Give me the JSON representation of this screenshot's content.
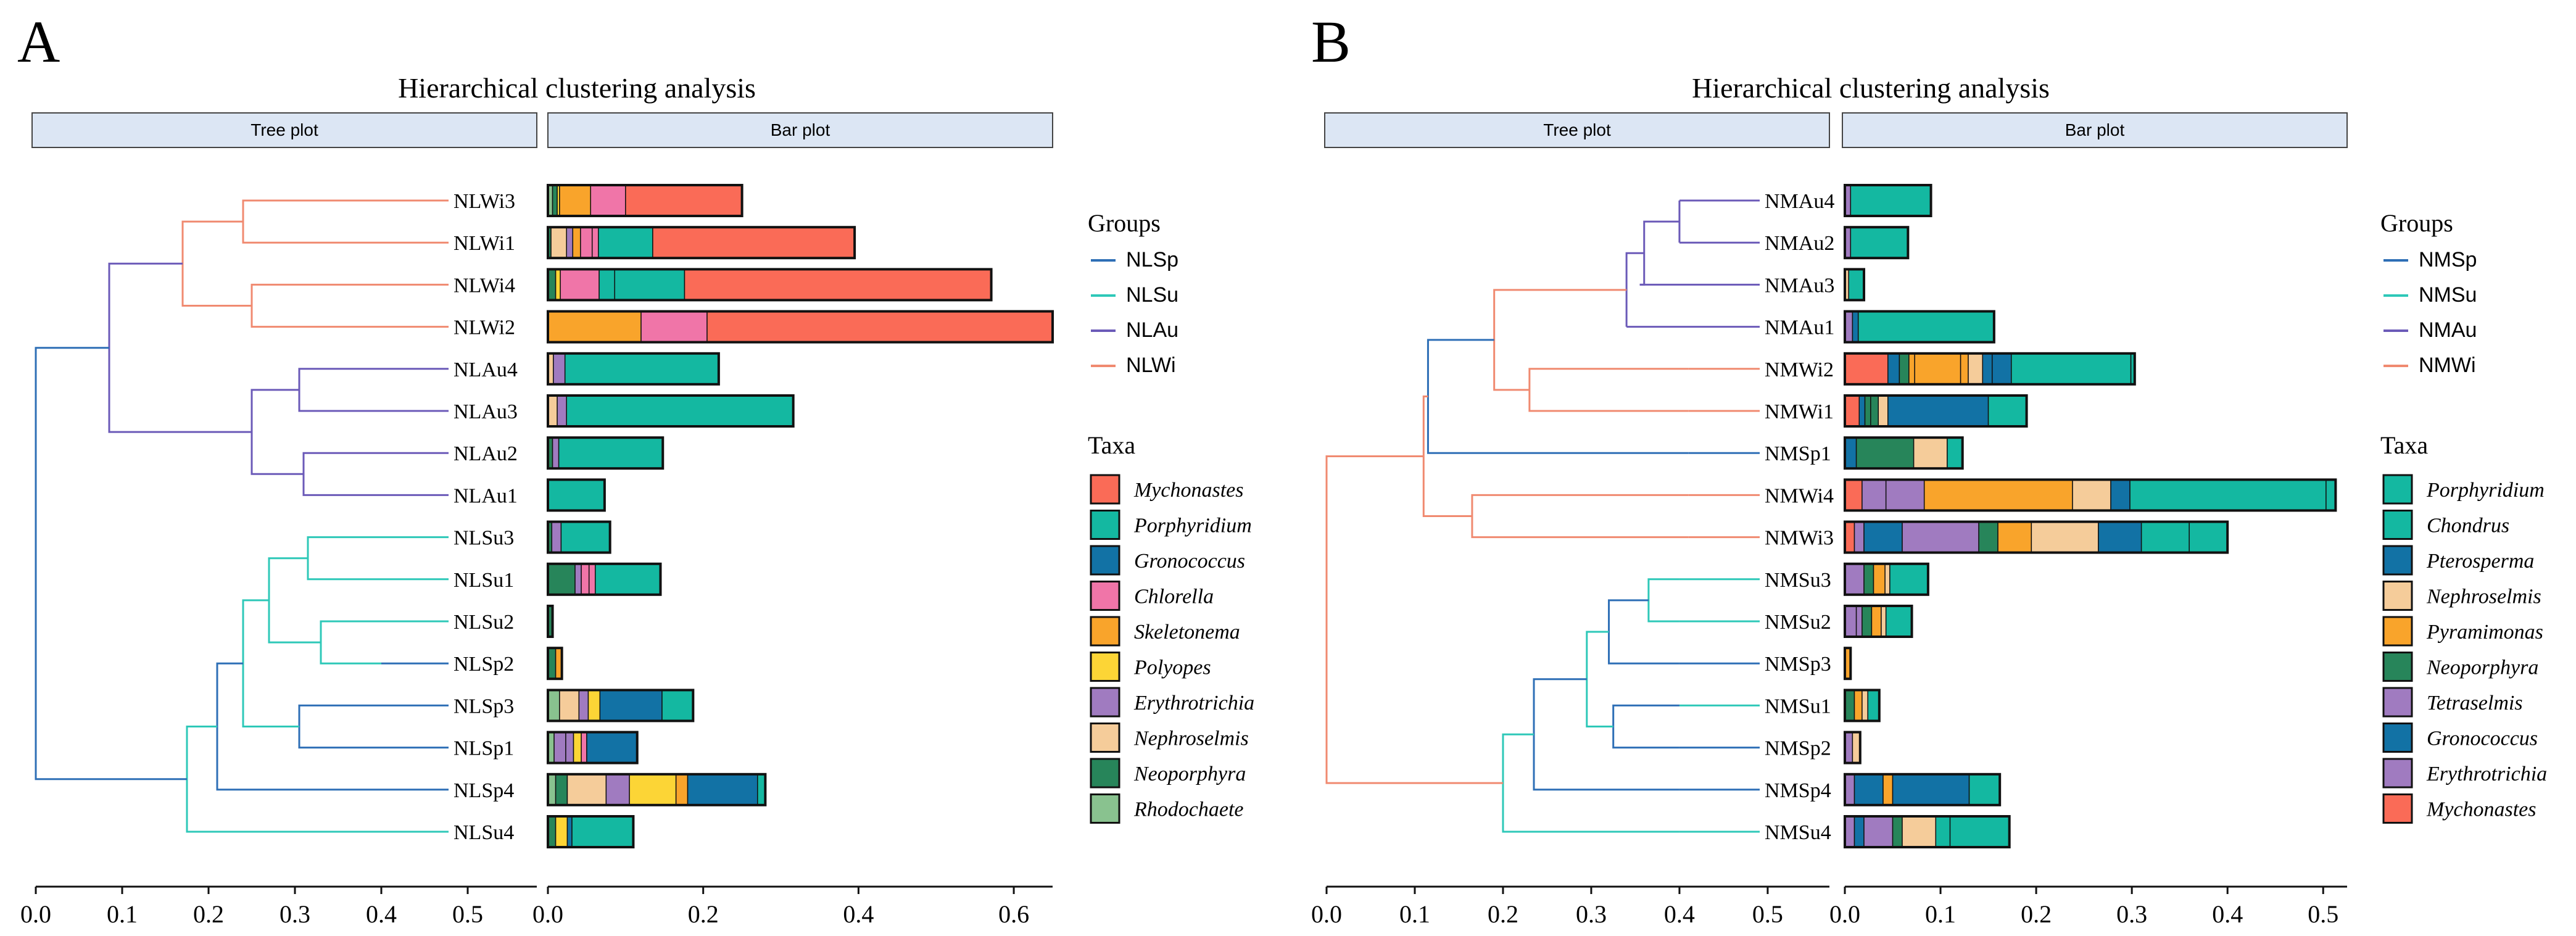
{
  "colors": {
    "Mychonastes": "#FA6B57",
    "Porphyridium": "#14B8A1",
    "Gronococcus": "#1272A5",
    "Chlorella": "#F075A8",
    "Skeletonema": "#F9A42B",
    "Polyopes": "#FCD536",
    "Erythrotrichia": "#A07BC0",
    "Nephroselmis": "#F5CC9A",
    "Neoporphyra": "#27855A",
    "Rhodochaete": "#89C28F",
    "Chondrus": "#14B8A1",
    "Pterosperma": "#1272A5",
    "Pyramimonas": "#F9A42B",
    "Tetraselmis": "#A07BC0",
    "group_Sp": "#2E6FB6",
    "group_Su": "#2EC8B8",
    "group_Au": "#6B5AB8",
    "group_Wi": "#F08A70",
    "strip_fill": "#DCE6F4"
  },
  "chart_data": [
    {
      "panel_label": "A",
      "type": "bar",
      "title": "Hierarchical clustering analysis",
      "strip_tree": "Tree plot",
      "strip_bar": "Bar plot",
      "groups_title": "Groups",
      "groups": [
        {
          "name": "NLSp",
          "color": "#2E6FB6"
        },
        {
          "name": "NLSu",
          "color": "#2EC8B8"
        },
        {
          "name": "NLAu",
          "color": "#6B5AB8"
        },
        {
          "name": "NLWi",
          "color": "#F08A70"
        }
      ],
      "taxa_title": "Taxa",
      "taxa": [
        "Mychonastes",
        "Porphyridium",
        "Gronococcus",
        "Chlorella",
        "Skeletonema",
        "Polyopes",
        "Erythrotrichia",
        "Nephroselmis",
        "Neoporphyra",
        "Rhodochaete"
      ],
      "stack_order": [
        "Rhodochaete",
        "Neoporphyra",
        "Nephroselmis",
        "Erythrotrichia",
        "Polyopes",
        "Skeletonema",
        "Chlorella",
        "Gronococcus",
        "Porphyridium",
        "Mychonastes"
      ],
      "tree_xlim": [
        0,
        0.58
      ],
      "tree_ticks": [
        "0.0",
        "0.1",
        "0.2",
        "0.3",
        "0.4",
        "0.5"
      ],
      "bar_xlim": [
        0,
        0.65
      ],
      "bar_ticks": [
        "0.0",
        "0.2",
        "0.4",
        "0.6"
      ],
      "samples": [
        "NLWi3",
        "NLWi1",
        "NLWi4",
        "NLWi2",
        "NLAu4",
        "NLAu3",
        "NLAu2",
        "NLAu1",
        "NLSu3",
        "NLSu1",
        "NLSu2",
        "NLSp2",
        "NLSp3",
        "NLSp1",
        "NLSp4",
        "NLSu4"
      ],
      "sample_groups": [
        "Wi",
        "Wi",
        "Wi",
        "Wi",
        "Au",
        "Au",
        "Au",
        "Au",
        "Su",
        "Su",
        "Su",
        "Sp",
        "Sp",
        "Sp",
        "Sp",
        "Su"
      ],
      "leaf_heights": [
        0.31,
        0.31,
        0.335,
        0.335,
        0.375,
        0.375,
        0.4,
        0.4,
        0.385,
        0.385,
        0.4,
        0.4,
        0.355,
        0.355,
        0.24,
        0.205
      ],
      "merges": [
        {
          "a": "L0",
          "b": "L1",
          "h": 0.24,
          "group": "Wi"
        },
        {
          "a": "L2",
          "b": "L3",
          "h": 0.25,
          "group": "Wi"
        },
        {
          "a": "M0",
          "b": "M1",
          "h": 0.17,
          "group": "Wi"
        },
        {
          "a": "L4",
          "b": "L5",
          "h": 0.305,
          "group": "Au"
        },
        {
          "a": "L6",
          "b": "L7",
          "h": 0.31,
          "group": "Au"
        },
        {
          "a": "M3",
          "b": "M4",
          "h": 0.25,
          "group": "Au"
        },
        {
          "a": "M2",
          "b": "M5",
          "h": 0.085,
          "group": "Au"
        },
        {
          "a": "L8",
          "b": "L9",
          "h": 0.315,
          "group": "Su"
        },
        {
          "a": "L10",
          "b": "L11",
          "h": 0.33,
          "group": "Su"
        },
        {
          "a": "M7",
          "b": "M8",
          "h": 0.27,
          "group": "Su"
        },
        {
          "a": "L12",
          "b": "L13",
          "h": 0.305,
          "group": "Sp"
        },
        {
          "a": "M9",
          "b": "M10",
          "h": 0.24,
          "group": "Su"
        },
        {
          "a": "M11",
          "b": "L14",
          "h": 0.21,
          "group": "Sp"
        },
        {
          "a": "M12",
          "b": "L15",
          "h": 0.175,
          "group": "Su"
        },
        {
          "a": "M6",
          "b": "M13",
          "h": 0,
          "group": "Sp"
        }
      ],
      "bars": [
        {
          "Rhodochaete": 0.006,
          "Neoporphyra": 0.006,
          "Polyopes": 0.003,
          "Skeletonema": 0.04,
          "Chlorella": 0.045,
          "Mychonastes": 0.15
        },
        {
          "Neoporphyra": 0.004,
          "Nephroselmis": 0.02,
          "Skeletonema": 0.01,
          "Chlorella": 0.015,
          "Erythrotrichia": 0.008,
          "Chlorella_2": 0.008,
          "Porphyridium": 0.07,
          "Mychonastes": 0.26
        },
        {
          "Neoporphyra": 0.01,
          "Polyopes": 0.006,
          "Porphyridium": 0.02,
          "Chlorella": 0.05,
          "Porphyridium_2": 0.09,
          "Mychonastes": 0.395
        },
        {
          "Skeletonema": 0.12,
          "Chlorella": 0.085,
          "Mychonastes": 0.445
        },
        {
          "Erythrotrichia": 0.015,
          "Nephroselmis": 0.007,
          "Porphyridium": 0.198
        },
        {
          "Erythrotrichia": 0.012,
          "Nephroselmis": 0.012,
          "Porphyridium": 0.292
        },
        {
          "Erythrotrichia": 0.008,
          "Neoporphyra": 0.006,
          "Porphyridium": 0.134
        },
        {
          "Porphyridium": 0.073
        },
        {
          "Neoporphyra": 0.005,
          "Erythrotrichia": 0.012,
          "Porphyridium": 0.063
        },
        {
          "Neoporphyra": 0.035,
          "Chlorella": 0.01,
          "Erythrotrichia": 0.008,
          "Chlorella_2": 0.008,
          "Porphyridium": 0.084
        },
        {
          "Neoporphyra": 0.006
        },
        {
          "Neoporphyra": 0.01,
          "Skeletonema": 0.008
        },
        {
          "Rhodochaete": 0.015,
          "Nephroselmis": 0.025,
          "Polyopes": 0.015,
          "Erythrotrichia": 0.012,
          "Gronococcus": 0.08,
          "Porphyridium": 0.04
        },
        {
          "Rhodochaete": 0.008,
          "Erythrotrichia": 0.015,
          "Polyopes": 0.01,
          "Chlorella": 0.007,
          "Erythrotrichia_2": 0.01,
          "Gronococcus": 0.065
        },
        {
          "Rhodochaete": 0.01,
          "Neoporphyra": 0.015,
          "Nephroselmis": 0.05,
          "Erythrotrichia": 0.03,
          "Polyopes": 0.06,
          "Skeletonema": 0.015,
          "Gronococcus": 0.09,
          "Porphyridium": 0.01
        },
        {
          "Polyopes": 0.015,
          "Neoporphyra": 0.01,
          "Gronococcus": 0.006,
          "Porphyridium": 0.079
        }
      ]
    },
    {
      "panel_label": "B",
      "type": "bar",
      "title": "Hierarchical clustering analysis",
      "strip_tree": "Tree plot",
      "strip_bar": "Bar plot",
      "groups_title": "Groups",
      "groups": [
        {
          "name": "NMSp",
          "color": "#2E6FB6"
        },
        {
          "name": "NMSu",
          "color": "#2EC8B8"
        },
        {
          "name": "NMAu",
          "color": "#6B5AB8"
        },
        {
          "name": "NMWi",
          "color": "#F08A70"
        }
      ],
      "taxa_title": "Taxa",
      "taxa": [
        "Porphyridium",
        "Chondrus",
        "Pterosperma",
        "Nephroselmis",
        "Pyramimonas",
        "Neoporphyra",
        "Tetraselmis",
        "Gronococcus",
        "Erythrotrichia",
        "Mychonastes"
      ],
      "stack_order": [
        "Mychonastes",
        "Erythrotrichia",
        "Gronococcus",
        "Tetraselmis",
        "Neoporphyra",
        "Pyramimonas",
        "Nephroselmis",
        "Pterosperma",
        "Chondrus",
        "Porphyridium"
      ],
      "tree_xlim": [
        0,
        0.57
      ],
      "tree_ticks": [
        "0.0",
        "0.1",
        "0.2",
        "0.3",
        "0.4",
        "0.5"
      ],
      "bar_xlim": [
        0,
        0.525
      ],
      "bar_ticks": [
        "0.0",
        "0.1",
        "0.2",
        "0.3",
        "0.4",
        "0.5"
      ],
      "samples": [
        "NMAu4",
        "NMAu2",
        "NMAu3",
        "NMAu1",
        "NMWi2",
        "NMWi1",
        "NMSp1",
        "NMWi4",
        "NMWi3",
        "NMSu3",
        "NMSu2",
        "NMSp3",
        "NMSu1",
        "NMSp2",
        "NMSp4",
        "NMSu4"
      ],
      "sample_groups": [
        "Au",
        "Au",
        "Au",
        "Au",
        "Wi",
        "Wi",
        "Sp",
        "Wi",
        "Wi",
        "Su",
        "Su",
        "Sp",
        "Su",
        "Sp",
        "Sp",
        "Su"
      ],
      "leaf_heights": [
        0.4,
        0.4,
        0.355,
        0.34,
        0.41,
        0.41,
        0.41,
        0.41,
        0.41,
        0.4,
        0.4,
        0.4,
        0.4,
        0.4,
        0.4,
        0.4
      ],
      "merges": [
        {
          "a": "L0",
          "b": "L1",
          "h": 0.4,
          "group": "Au"
        },
        {
          "a": "M0",
          "b": "L2",
          "h": 0.36,
          "group": "Au"
        },
        {
          "a": "M1",
          "b": "L3",
          "h": 0.34,
          "group": "Au"
        },
        {
          "a": "L4",
          "b": "L5",
          "h": 0.23,
          "group": "Wi"
        },
        {
          "a": "M2",
          "b": "M3",
          "h": 0.19,
          "group": "Wi"
        },
        {
          "a": "M4",
          "b": "L6",
          "h": 0.115,
          "group": "Sp"
        },
        {
          "a": "L7",
          "b": "L8",
          "h": 0.165,
          "group": "Wi"
        },
        {
          "a": "M5",
          "b": "M6",
          "h": 0.11,
          "group": "Wi"
        },
        {
          "a": "L9",
          "b": "L10",
          "h": 0.365,
          "group": "Su"
        },
        {
          "a": "M8",
          "b": "L11",
          "h": 0.32,
          "group": "Sp"
        },
        {
          "a": "L12",
          "b": "L13",
          "h": 0.325,
          "group": "Sp"
        },
        {
          "a": "M9",
          "b": "M10",
          "h": 0.295,
          "group": "Su"
        },
        {
          "a": "M11",
          "b": "L14",
          "h": 0.235,
          "group": "Sp"
        },
        {
          "a": "M12",
          "b": "L15",
          "h": 0.2,
          "group": "Su"
        },
        {
          "a": "M7",
          "b": "M13",
          "h": 0,
          "group": "Wi"
        }
      ],
      "bars": [
        {
          "Erythrotrichia": 0.006,
          "Porphyridium": 0.084
        },
        {
          "Erythrotrichia": 0.006,
          "Porphyridium": 0.06
        },
        {
          "Nephroselmis": 0.004,
          "Porphyridium": 0.016
        },
        {
          "Erythrotrichia": 0.008,
          "Gronococcus": 0.006,
          "Porphyridium": 0.142
        },
        {
          "Mychonastes": 0.045,
          "Gronococcus": 0.012,
          "Pyramimonas": 0.006,
          "Neoporphyra": 0.01,
          "Pyramimonas_2": 0.048,
          "Nephroselmis": 0.015,
          "Pterosperma": 0.01,
          "Pyramimonas_3": 0.008,
          "Pterosperma_2": 0.02,
          "Chondrus": 0.125,
          "Porphyridium": 0.004
        },
        {
          "Mychonastes": 0.015,
          "Neoporphyra": 0.006,
          "Gronococcus": 0.006,
          "Neoporphyra_2": 0.008,
          "Nephroselmis": 0.01,
          "Pterosperma": 0.105,
          "Chondrus": 0.04
        },
        {
          "Gronococcus": 0.012,
          "Neoporphyra": 0.06,
          "Nephroselmis": 0.035,
          "Porphyridium": 0.016
        },
        {
          "Mychonastes": 0.018,
          "Erythrotrichia": 0.025,
          "Tetraselmis": 0.04,
          "Pyramimonas": 0.155,
          "Nephroselmis": 0.04,
          "Pterosperma": 0.02,
          "Chondrus": 0.205,
          "Porphyridium": 0.01
        },
        {
          "Mychonastes": 0.01,
          "Erythrotrichia": 0.01,
          "Gronococcus": 0.04,
          "Tetraselmis": 0.08,
          "Neoporphyra": 0.02,
          "Pyramimonas": 0.035,
          "Nephroselmis": 0.07,
          "Pterosperma": 0.045,
          "Chondrus": 0.05,
          "Porphyridium": 0.04
        },
        {
          "Erythrotrichia": 0.02,
          "Neoporphyra": 0.01,
          "Pyramimonas": 0.012,
          "Nephroselmis": 0.005,
          "Porphyridium": 0.04
        },
        {
          "Erythrotrichia": 0.012,
          "Neoporphyra": 0.01,
          "Pyramimonas": 0.01,
          "Nephroselmis": 0.005,
          "Tetraselmis": 0.006,
          "Porphyridium": 0.027
        },
        {
          "Pyramimonas": 0.006
        },
        {
          "Pyramimonas": 0.008,
          "Neoporphyra": 0.01,
          "Nephroselmis": 0.006,
          "Porphyridium": 0.012
        },
        {
          "Tetraselmis": 0.008,
          "Nephroselmis": 0.008
        },
        {
          "Erythrotrichia": 0.01,
          "Gronococcus": 0.03,
          "Pyramimonas": 0.01,
          "Pterosperma": 0.08,
          "Porphyridium": 0.032
        },
        {
          "Erythrotrichia": 0.01,
          "Gronococcus": 0.01,
          "Tetraselmis": 0.03,
          "Neoporphyra": 0.01,
          "Nephroselmis": 0.035,
          "Chondrus": 0.015,
          "Porphyridium": 0.062
        }
      ]
    }
  ]
}
